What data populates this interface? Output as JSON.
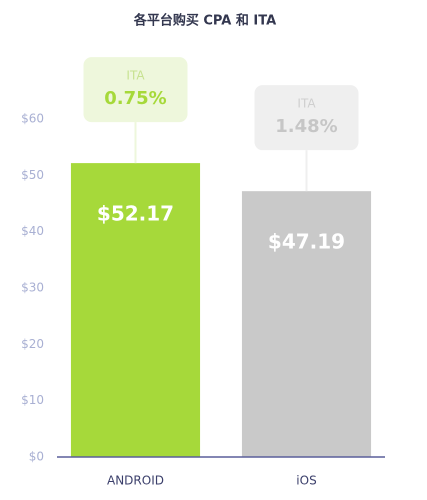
{
  "chart_data": {
    "type": "bar",
    "title": "各平台购买 CPA 和 ITA",
    "categories": [
      "ANDROID",
      "iOS"
    ],
    "values": [
      52.17,
      47.19
    ],
    "value_labels": [
      "$52.17",
      "$47.19"
    ],
    "colors": [
      "#a6d93a",
      "#c9c9c9"
    ],
    "ylim": [
      0,
      60
    ],
    "yticks": [
      {
        "value": 0,
        "label": "$0"
      },
      {
        "value": 10,
        "label": "$10"
      },
      {
        "value": 20,
        "label": "$20"
      },
      {
        "value": 30,
        "label": "$30"
      },
      {
        "value": 40,
        "label": "$40"
      },
      {
        "value": 50,
        "label": "$50"
      },
      {
        "value": 60,
        "label": "$60"
      }
    ],
    "ita": {
      "label": "ITA",
      "values": [
        0.75,
        1.48
      ],
      "value_labels": [
        "0.75%",
        "1.48%"
      ]
    }
  }
}
